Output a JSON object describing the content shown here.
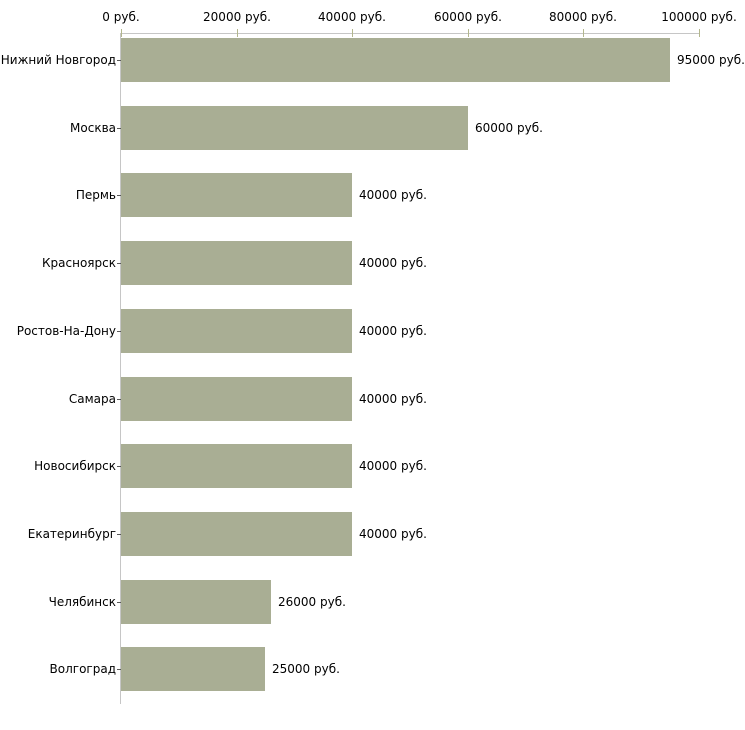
{
  "chart_data": {
    "type": "bar",
    "orientation": "horizontal",
    "title": "",
    "unit": "руб.",
    "categories": [
      "Нижний Новгород",
      "Москва",
      "Пермь",
      "Красноярск",
      "Ростов-На-Дону",
      "Самара",
      "Новосибирск",
      "Екатеринбург",
      "Челябинск",
      "Волгоград"
    ],
    "values": [
      95000,
      60000,
      40000,
      40000,
      40000,
      40000,
      40000,
      40000,
      26000,
      25000
    ],
    "value_labels": [
      "95000 руб.",
      "60000 руб.",
      "40000 руб.",
      "40000 руб.",
      "40000 руб.",
      "40000 руб.",
      "40000 руб.",
      "40000 руб.",
      "26000 руб.",
      "25000 руб."
    ],
    "x_axis": {
      "position": "top",
      "range": [
        0,
        100000
      ],
      "tick_values": [
        0,
        20000,
        40000,
        60000,
        80000,
        100000
      ],
      "tick_labels": [
        "0 руб.",
        "20000 руб.",
        "40000 руб.",
        "60000 руб.",
        "80000 руб.",
        "100000 руб."
      ]
    },
    "grid": false,
    "legend": false,
    "colors": {
      "bar": "#a9ae94",
      "axis_line": "#c6c6c6",
      "axis_tick": "#b3b78d",
      "category_tick": "#595959",
      "text": "#000000",
      "background": "#ffffff"
    }
  }
}
